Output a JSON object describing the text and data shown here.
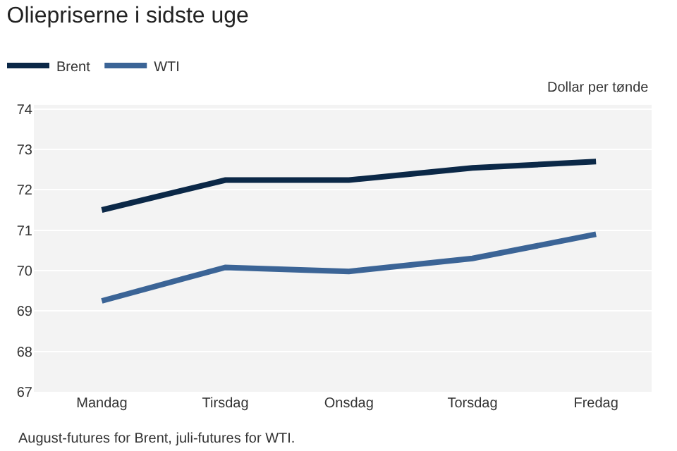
{
  "chart_data": {
    "type": "line",
    "title": "Oliepriserne i sidste uge",
    "ylabel": "Dollar per tønde",
    "categories": [
      "Mandag",
      "Tirsdag",
      "Onsdag",
      "Torsdag",
      "Fredag"
    ],
    "series": [
      {
        "name": "Brent",
        "color": "#0b2847",
        "values": [
          71.5,
          72.24,
          72.24,
          72.54,
          72.7
        ]
      },
      {
        "name": "WTI",
        "color": "#3b6496",
        "values": [
          69.25,
          70.08,
          69.98,
          70.3,
          70.9
        ]
      }
    ],
    "ylim": [
      67,
      74.1
    ],
    "yticks": [
      67,
      68,
      69,
      70,
      71,
      72,
      73,
      74
    ],
    "grid": "y",
    "legend": "top left",
    "marker": "none",
    "line_style": "solid",
    "annotations": [
      "August-futures for Brent, juli-futures for WTI."
    ]
  }
}
